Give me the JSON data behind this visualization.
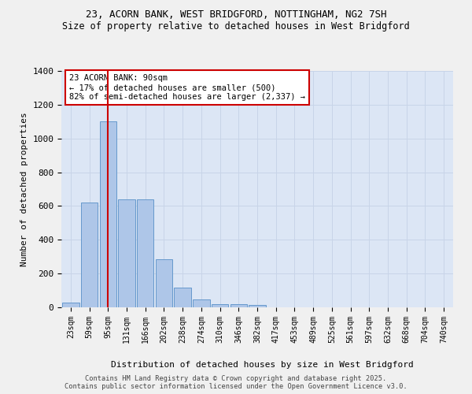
{
  "title1": "23, ACORN BANK, WEST BRIDGFORD, NOTTINGHAM, NG2 7SH",
  "title2": "Size of property relative to detached houses in West Bridgford",
  "xlabel": "Distribution of detached houses by size in West Bridgford",
  "ylabel": "Number of detached properties",
  "footer1": "Contains HM Land Registry data © Crown copyright and database right 2025.",
  "footer2": "Contains public sector information licensed under the Open Government Licence v3.0.",
  "bin_labels": [
    "23sqm",
    "59sqm",
    "95sqm",
    "131sqm",
    "166sqm",
    "202sqm",
    "238sqm",
    "274sqm",
    "310sqm",
    "346sqm",
    "382sqm",
    "417sqm",
    "453sqm",
    "489sqm",
    "525sqm",
    "561sqm",
    "597sqm",
    "632sqm",
    "668sqm",
    "704sqm",
    "740sqm"
  ],
  "bar_values": [
    30,
    620,
    1100,
    640,
    640,
    285,
    115,
    47,
    20,
    20,
    12,
    0,
    0,
    0,
    0,
    0,
    0,
    0,
    0,
    0,
    0
  ],
  "bar_color": "#aec6e8",
  "bar_edge_color": "#6699cc",
  "grid_color": "#c8d4e8",
  "bg_color": "#dce6f5",
  "fig_bg_color": "#f0f0f0",
  "red_line_x": 2,
  "annotation_title": "23 ACORN BANK: 90sqm",
  "annotation_line1": "← 17% of detached houses are smaller (500)",
  "annotation_line2": "82% of semi-detached houses are larger (2,337) →",
  "annotation_box_color": "#ffffff",
  "annotation_box_edge": "#cc0000",
  "red_line_color": "#cc0000",
  "ylim": [
    0,
    1400
  ],
  "yticks": [
    0,
    200,
    400,
    600,
    800,
    1000,
    1200,
    1400
  ]
}
